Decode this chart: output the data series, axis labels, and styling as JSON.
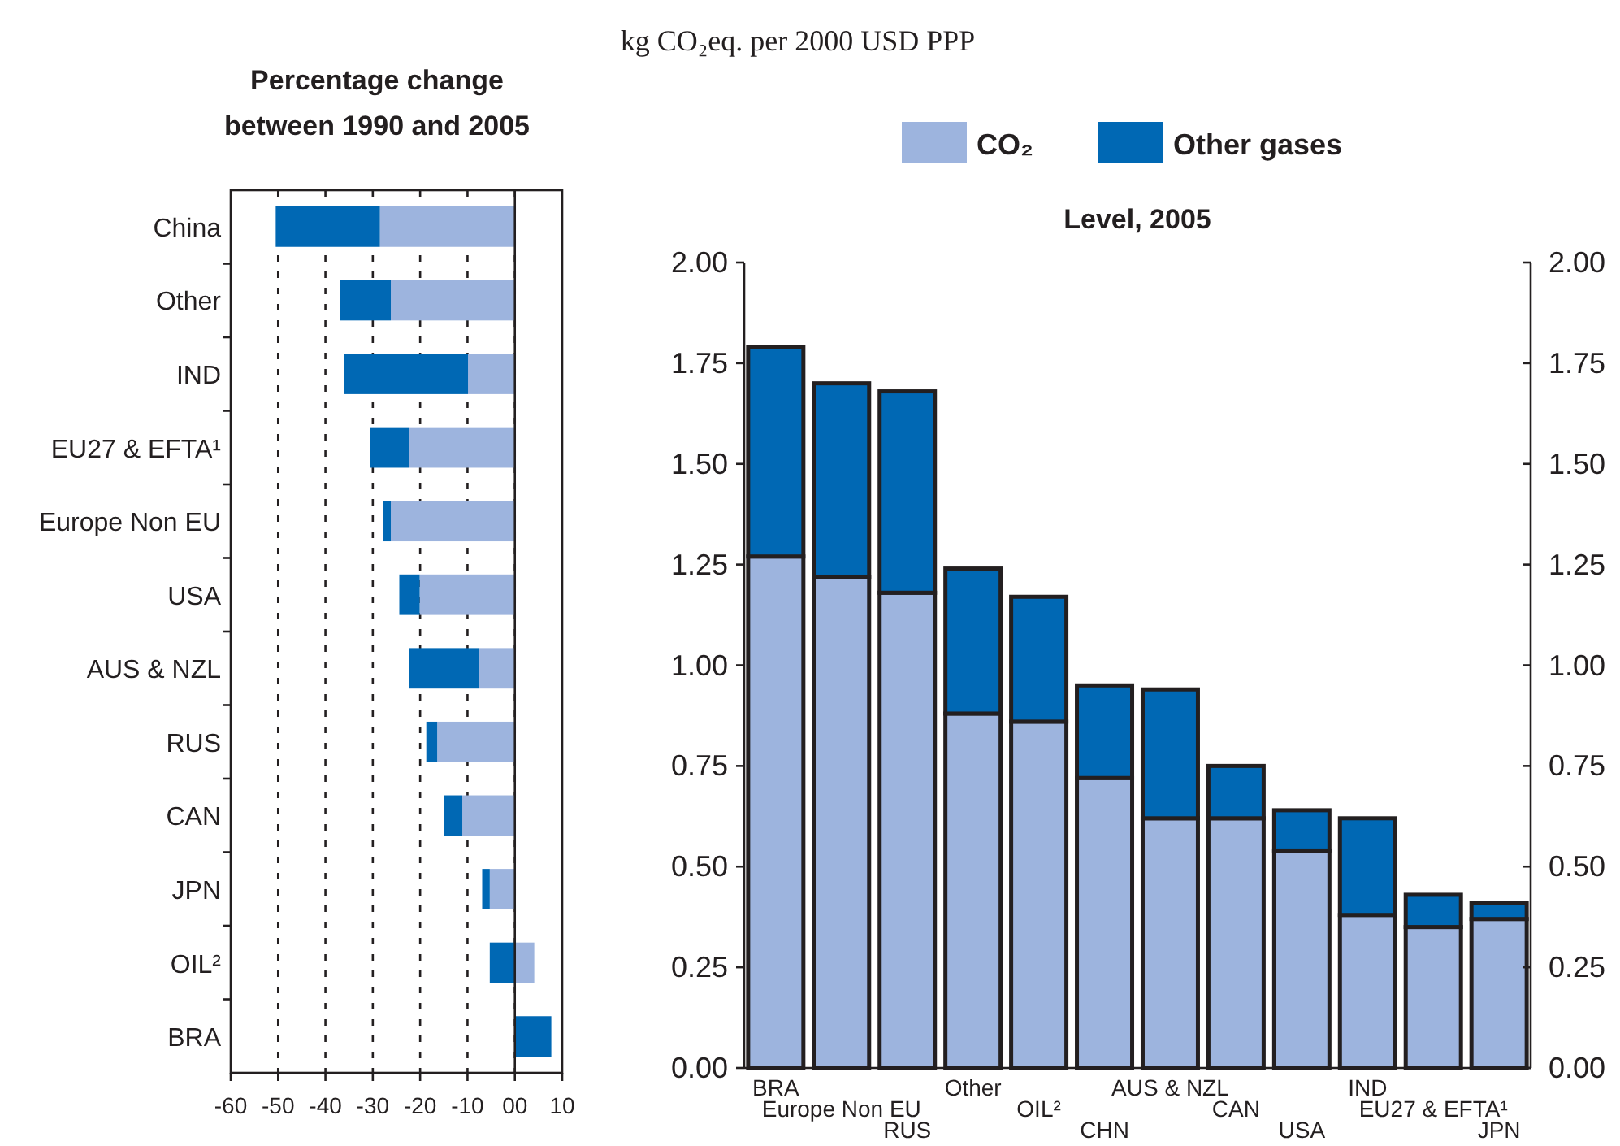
{
  "chart_data": [
    {
      "type": "bar",
      "title": "Percentage change between 1990 and 2005",
      "orientation": "horizontal",
      "stacked": true,
      "categories": [
        "China",
        "Other",
        "IND",
        "EU27 & EFTA¹",
        "Europe Non EU",
        "USA",
        "AUS & NZL",
        "RUS",
        "CAN",
        "JPN",
        "OIL²",
        "BRA"
      ],
      "series": [
        {
          "color": "#9db4de",
          "values": [
            -28.5,
            -26.2,
            -9.9,
            -22.4,
            -26.2,
            -20.1,
            -7.6,
            -16.4,
            -11.1,
            -5.3,
            4.1,
            0
          ]
        },
        {
          "color": "#0068b4",
          "values": [
            -22,
            -10.8,
            -26.2,
            -8.2,
            -1.7,
            -4.3,
            -14.7,
            -2.3,
            -3.8,
            -1.6,
            -5.3,
            7.7
          ]
        }
      ],
      "xlim": [
        -60,
        10
      ],
      "xticks": [
        -60,
        -50,
        -40,
        -30,
        -20,
        -10,
        {
          "value": 0,
          "label": "00"
        },
        10
      ],
      "grid": "x",
      "ref_lines": [
        {
          "axis": "x",
          "value": 0
        }
      ]
    },
    {
      "type": "bar",
      "title": "Level, 2005",
      "subtitle": "kg CO₂eq. per 2000 USD PPP",
      "stacked": true,
      "categories": [
        "BRA",
        "Europe Non EU",
        "RUS",
        "Other",
        "OIL²",
        "CHN",
        "AUS & NZL",
        "CAN",
        "USA",
        "IND",
        "EU27 & EFTA¹",
        "JPN"
      ],
      "series": [
        {
          "name": "CO₂",
          "color": "#9db4de",
          "values": [
            1.27,
            1.22,
            1.18,
            0.88,
            0.86,
            0.72,
            0.62,
            0.62,
            0.54,
            0.38,
            0.35,
            0.37
          ]
        },
        {
          "name": "Other gases",
          "color": "#0068b4",
          "values": [
            0.52,
            0.48,
            0.5,
            0.36,
            0.31,
            0.23,
            0.32,
            0.13,
            0.1,
            0.24,
            0.08,
            0.04
          ]
        }
      ],
      "ylim": [
        0,
        2
      ],
      "yticks": [
        {
          "value": 0,
          "label": "0.00"
        },
        {
          "value": 0.25,
          "label": "0.25"
        },
        {
          "value": 0.5,
          "label": "0.50"
        },
        {
          "value": 0.75,
          "label": "0.75"
        },
        {
          "value": 1,
          "label": "1.00"
        },
        {
          "value": 1.25,
          "label": "1.25"
        },
        {
          "value": 1.5,
          "label": "1.50"
        },
        {
          "value": 1.75,
          "label": "1.75"
        },
        {
          "value": 2,
          "label": "2.00"
        }
      ],
      "y2lim": [
        0,
        2
      ],
      "y2ticks": [
        {
          "value": 0,
          "label": "0.00"
        },
        {
          "value": 0.25,
          "label": "0.25"
        },
        {
          "value": 0.5,
          "label": "0.50"
        },
        {
          "value": 0.75,
          "label": "0.75"
        },
        {
          "value": 1,
          "label": "1.00"
        },
        {
          "value": 1.25,
          "label": "1.25"
        },
        {
          "value": 1.5,
          "label": "1.50"
        },
        {
          "value": 1.75,
          "label": "1.75"
        },
        {
          "value": 2,
          "label": "2.00"
        }
      ],
      "legend": "top"
    }
  ]
}
